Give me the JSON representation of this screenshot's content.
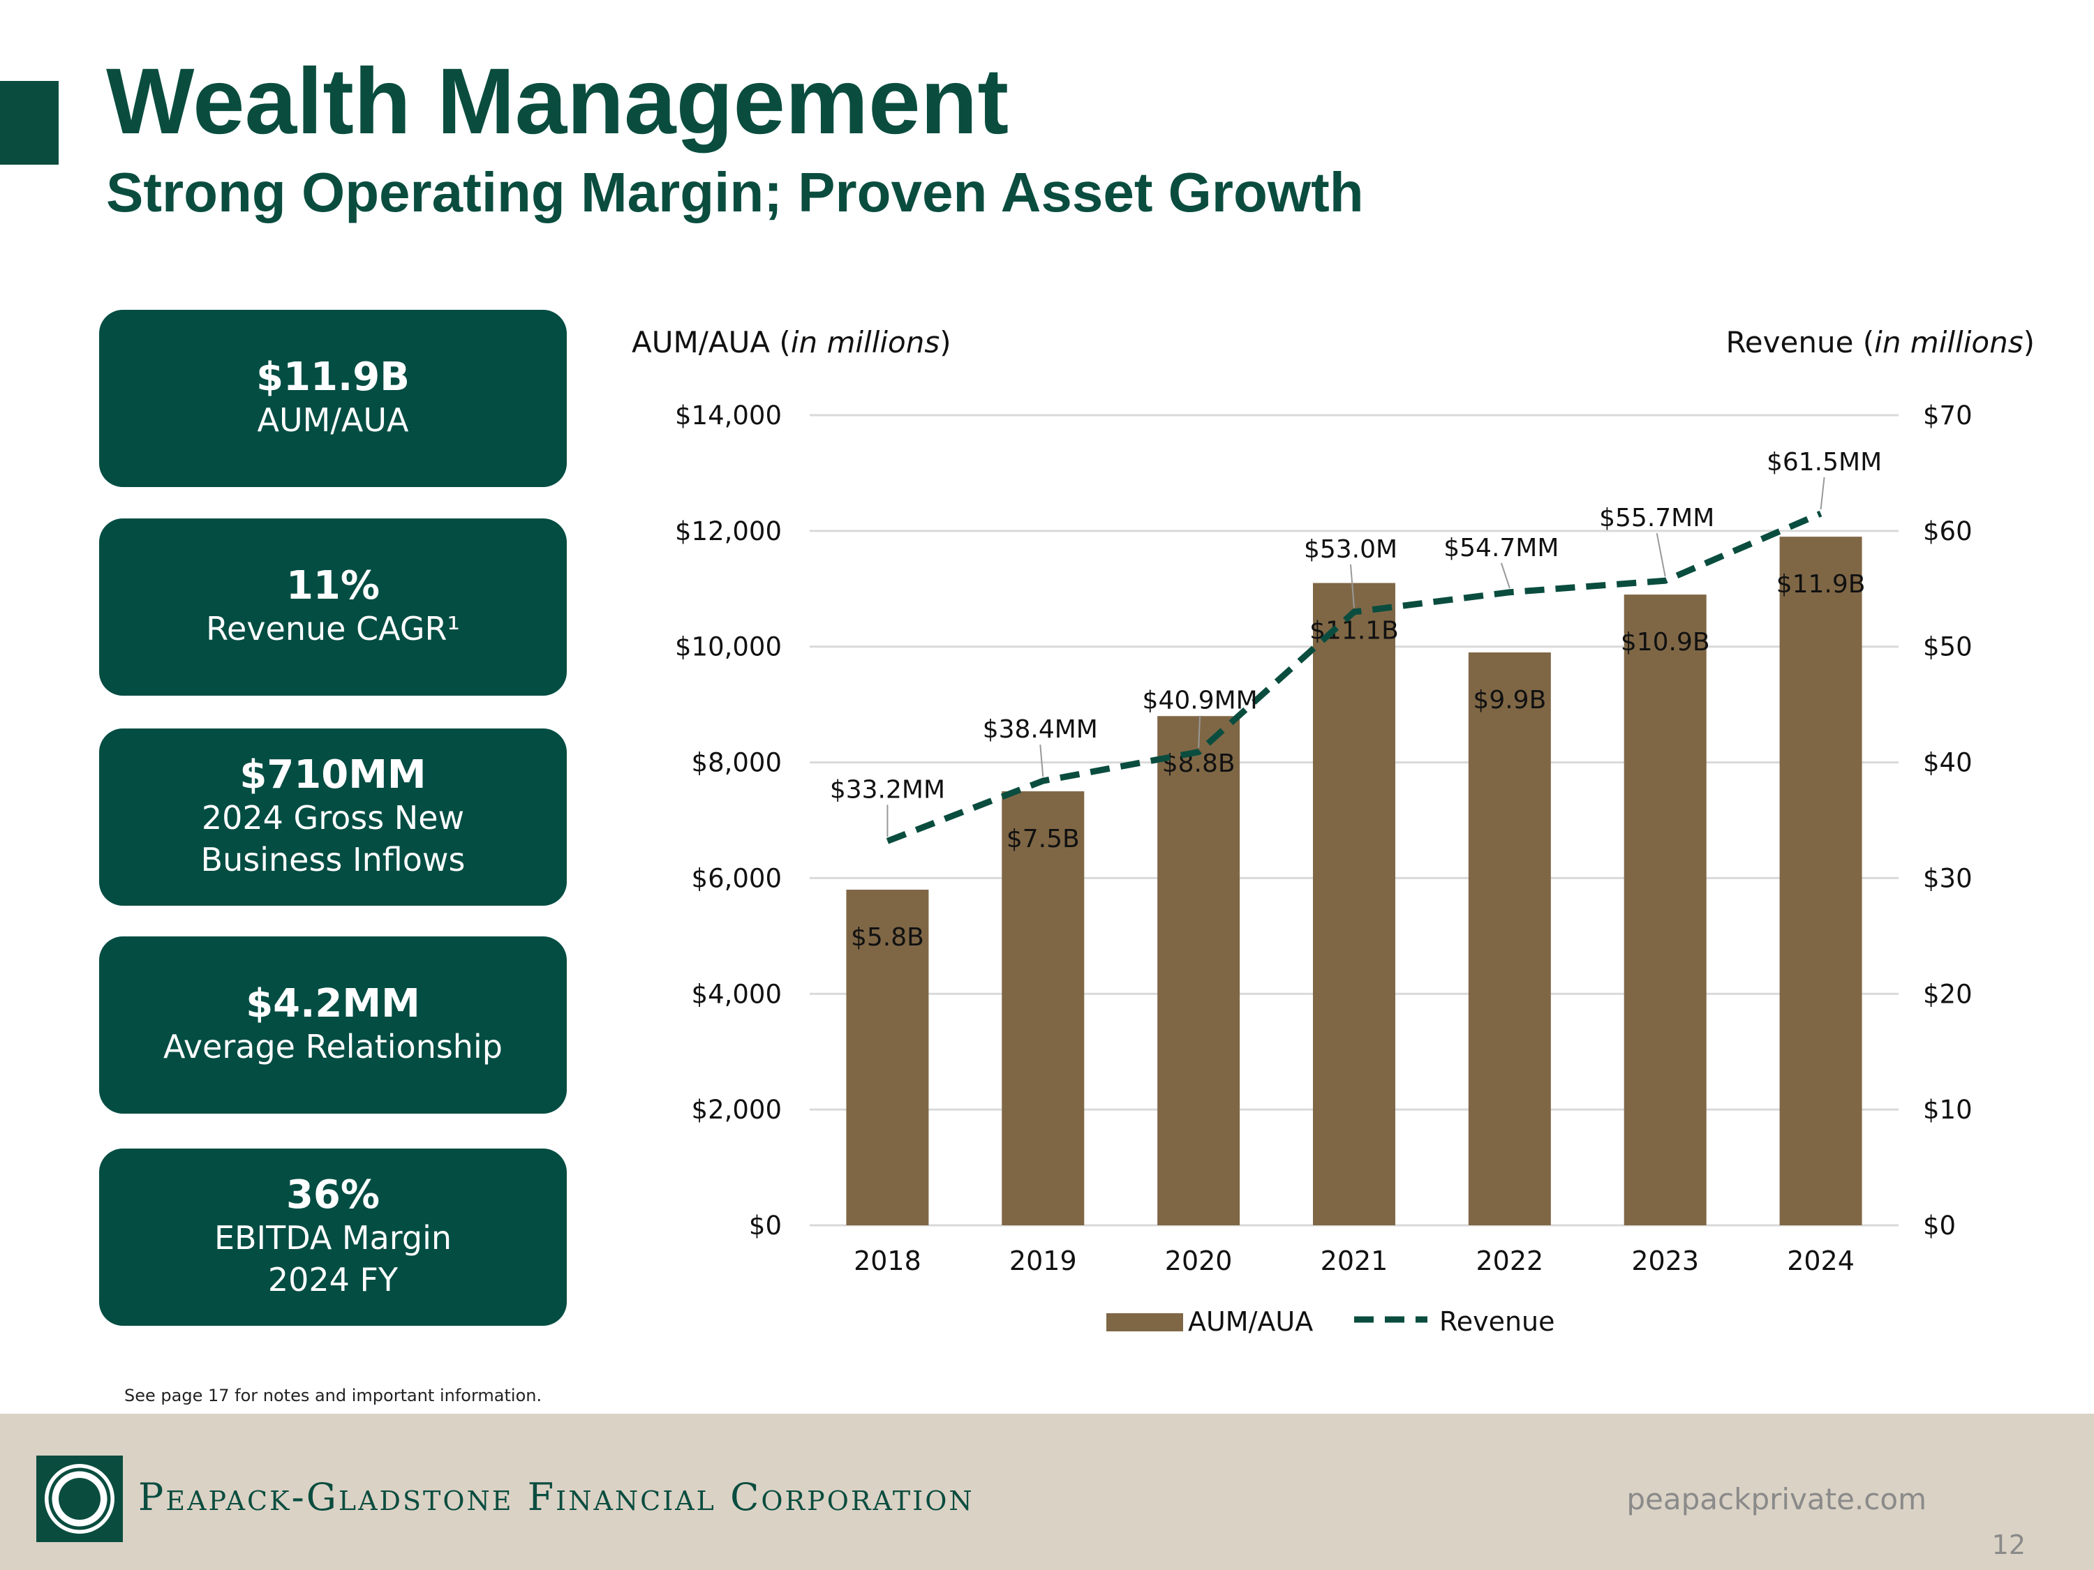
{
  "header": {
    "title": "Wealth Management",
    "subtitle": "Strong Operating Margin; Proven Asset Growth"
  },
  "kpis": [
    {
      "value": "$11.9B",
      "label": "AUM/AUA"
    },
    {
      "value": "11%",
      "label": "Revenue CAGR¹"
    },
    {
      "value": "$710MM",
      "label": "2024 Gross New\nBusiness Inflows"
    },
    {
      "value": "$4.2MM",
      "label": "Average Relationship"
    },
    {
      "value": "36%",
      "label": "EBITDA Margin\n2024 FY"
    }
  ],
  "note": "See page 17 for notes and important information.",
  "footer": {
    "company": "Peapack-Gladstone Financial Corporation",
    "website": "peapackprivate.com",
    "page_number": "12"
  },
  "colors": {
    "brand_green": "#0a4d3f",
    "bar_brown": "#7f6746",
    "footer_bg": "#dad2c5"
  },
  "chart_data": {
    "type": "bar",
    "categories": [
      "2018",
      "2019",
      "2020",
      "2021",
      "2022",
      "2023",
      "2024"
    ],
    "left_axis_title": "AUM/AUA",
    "left_axis_title_italic": "in millions",
    "right_axis_title": "Revenue",
    "right_axis_title_italic": "in millions",
    "left_ylim": [
      0,
      14000
    ],
    "left_ticks": [
      0,
      2000,
      4000,
      6000,
      8000,
      10000,
      12000,
      14000
    ],
    "left_tick_labels": [
      "$0",
      "$2,000",
      "$4,000",
      "$6,000",
      "$8,000",
      "$10,000",
      "$12,000",
      "$14,000"
    ],
    "right_ylim": [
      0,
      70
    ],
    "right_ticks": [
      0,
      10,
      20,
      30,
      40,
      50,
      60,
      70
    ],
    "right_tick_labels": [
      "$0",
      "$10",
      "$20",
      "$30",
      "$40",
      "$50",
      "$60",
      "$70"
    ],
    "grid": true,
    "legend_placement": "bottom",
    "series": [
      {
        "name": "AUM/AUA",
        "type": "bar",
        "axis": "left",
        "values": [
          5800,
          7500,
          8800,
          11100,
          9900,
          10900,
          11900
        ],
        "labels": [
          "$5.8B",
          "$7.5B",
          "$8.8B",
          "$11.1B",
          "$9.9B",
          "$10.9B",
          "$11.9B"
        ]
      },
      {
        "name": "Revenue",
        "type": "line",
        "style": "dashed",
        "axis": "right",
        "values": [
          33.2,
          38.4,
          40.9,
          53.0,
          54.7,
          55.7,
          61.5
        ],
        "labels": [
          "$33.2MM",
          "$38.4MM",
          "$40.9MM",
          "$53.0M",
          "$54.7MM",
          "$55.7MM",
          "$61.5MM"
        ]
      }
    ]
  }
}
